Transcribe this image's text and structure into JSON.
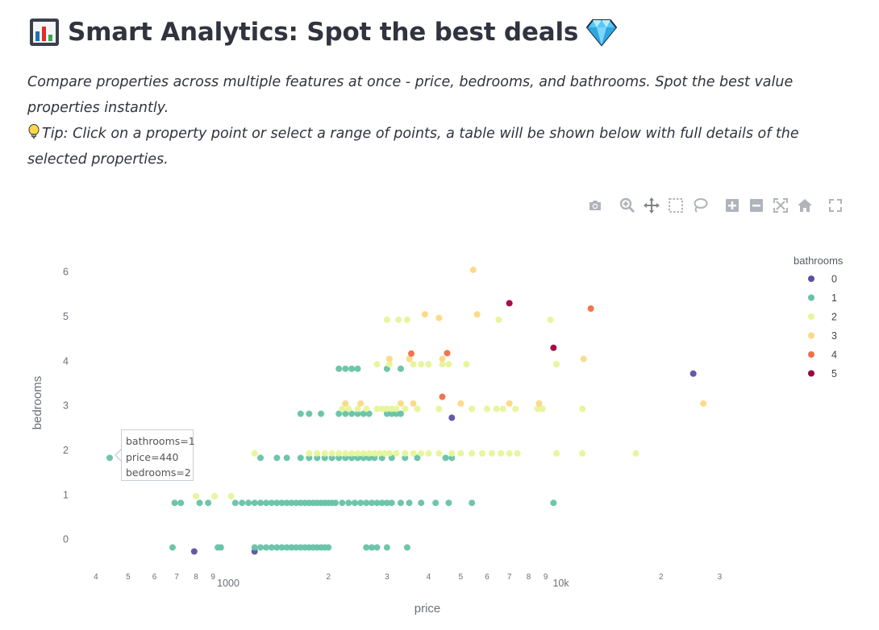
{
  "header": {
    "title": "Smart Analytics: Spot the best deals",
    "title_icon": "bar-chart-icon",
    "title_suffix_icon": "gem-icon"
  },
  "description": {
    "line1": "Compare properties across multiple features at once - price, bedrooms, and bathrooms. Spot the best value properties instantly.",
    "tip_icon": "lightbulb-icon",
    "tip": "Tip: Click on a property point or select a range of points, a table will be shown below with full details of the selected properties."
  },
  "modebar": {
    "buttons": [
      "camera-icon",
      "zoom-icon",
      "pan-icon",
      "box-select-icon",
      "lasso-select-icon",
      "zoom-in-icon",
      "zoom-out-icon",
      "autoscale-icon",
      "reset-axes-icon",
      "fullscreen-icon"
    ]
  },
  "tooltip": {
    "line1": "bathrooms=1",
    "line2": "price=440",
    "line3": "bedrooms=2"
  },
  "chart_data": {
    "type": "scatter",
    "title": "",
    "xlabel": "price",
    "ylabel": "bedrooms",
    "x_scale": "log",
    "xlim": [
      350,
      45000
    ],
    "ylim": [
      -0.55,
      6.5
    ],
    "x_ticks": [
      {
        "value": 400,
        "label": "4"
      },
      {
        "value": 500,
        "label": "5"
      },
      {
        "value": 600,
        "label": "6"
      },
      {
        "value": 700,
        "label": "7"
      },
      {
        "value": 800,
        "label": "8"
      },
      {
        "value": 900,
        "label": "9"
      },
      {
        "value": 1000,
        "label": "1000"
      },
      {
        "value": 2000,
        "label": "2"
      },
      {
        "value": 3000,
        "label": "3"
      },
      {
        "value": 4000,
        "label": "4"
      },
      {
        "value": 5000,
        "label": "5"
      },
      {
        "value": 6000,
        "label": "6"
      },
      {
        "value": 7000,
        "label": "7"
      },
      {
        "value": 8000,
        "label": "8"
      },
      {
        "value": 9000,
        "label": "9"
      },
      {
        "value": 10000,
        "label": "10k"
      },
      {
        "value": 20000,
        "label": "2"
      },
      {
        "value": 30000,
        "label": "3"
      }
    ],
    "y_ticks": [
      0,
      1,
      2,
      3,
      4,
      5,
      6
    ],
    "legend": {
      "title": "bathrooms",
      "placement": "right"
    },
    "series": [
      {
        "name": "0",
        "color": "#5e4fa2",
        "points": [
          [
            790,
            -0.27
          ],
          [
            1200,
            -0.27
          ],
          [
            4700,
            2.73
          ],
          [
            25000,
            3.72
          ]
        ]
      },
      {
        "name": "1",
        "color": "#66c2a5",
        "points": [
          [
            440,
            1.83
          ],
          [
            690,
            0.82
          ],
          [
            720,
            0.82
          ],
          [
            820,
            0.82
          ],
          [
            870,
            0.82
          ],
          [
            1050,
            0.82
          ],
          [
            1100,
            0.82
          ],
          [
            1150,
            0.82
          ],
          [
            1200,
            0.82
          ],
          [
            1250,
            0.82
          ],
          [
            1300,
            0.82
          ],
          [
            1350,
            0.82
          ],
          [
            1400,
            0.82
          ],
          [
            1450,
            0.82
          ],
          [
            1500,
            0.82
          ],
          [
            1550,
            0.82
          ],
          [
            1600,
            0.82
          ],
          [
            1650,
            0.82
          ],
          [
            1700,
            0.82
          ],
          [
            1750,
            0.82
          ],
          [
            1800,
            0.82
          ],
          [
            1850,
            0.82
          ],
          [
            1900,
            0.82
          ],
          [
            1950,
            0.82
          ],
          [
            2000,
            0.82
          ],
          [
            2050,
            0.82
          ],
          [
            2100,
            0.82
          ],
          [
            2200,
            0.82
          ],
          [
            2300,
            0.82
          ],
          [
            2400,
            0.82
          ],
          [
            2500,
            0.82
          ],
          [
            2600,
            0.82
          ],
          [
            2700,
            0.82
          ],
          [
            2800,
            0.82
          ],
          [
            2900,
            0.82
          ],
          [
            3000,
            0.82
          ],
          [
            3100,
            0.82
          ],
          [
            3300,
            0.82
          ],
          [
            3500,
            0.82
          ],
          [
            3800,
            0.82
          ],
          [
            4200,
            0.82
          ],
          [
            4600,
            0.82
          ],
          [
            5400,
            0.82
          ],
          [
            9500,
            0.82
          ],
          [
            680,
            -0.18
          ],
          [
            930,
            -0.18
          ],
          [
            950,
            -0.18
          ],
          [
            1200,
            -0.18
          ],
          [
            1250,
            -0.18
          ],
          [
            1300,
            -0.18
          ],
          [
            1350,
            -0.18
          ],
          [
            1400,
            -0.18
          ],
          [
            1450,
            -0.18
          ],
          [
            1500,
            -0.18
          ],
          [
            1550,
            -0.18
          ],
          [
            1600,
            -0.18
          ],
          [
            1650,
            -0.18
          ],
          [
            1700,
            -0.18
          ],
          [
            1750,
            -0.18
          ],
          [
            1800,
            -0.18
          ],
          [
            1850,
            -0.18
          ],
          [
            1900,
            -0.18
          ],
          [
            1950,
            -0.18
          ],
          [
            2000,
            -0.18
          ],
          [
            2600,
            -0.18
          ],
          [
            2700,
            -0.18
          ],
          [
            2800,
            -0.18
          ],
          [
            3000,
            -0.18
          ],
          [
            3450,
            -0.18
          ],
          [
            1250,
            1.83
          ],
          [
            1400,
            1.83
          ],
          [
            1500,
            1.83
          ],
          [
            1650,
            1.83
          ],
          [
            1750,
            1.83
          ],
          [
            1850,
            1.83
          ],
          [
            1950,
            1.83
          ],
          [
            2050,
            1.83
          ],
          [
            2150,
            1.83
          ],
          [
            2250,
            1.83
          ],
          [
            2350,
            1.83
          ],
          [
            2450,
            1.83
          ],
          [
            2550,
            1.83
          ],
          [
            2650,
            1.83
          ],
          [
            2750,
            1.83
          ],
          [
            2900,
            1.83
          ],
          [
            3100,
            1.83
          ],
          [
            3400,
            1.83
          ],
          [
            3700,
            1.83
          ],
          [
            4500,
            1.83
          ],
          [
            4700,
            1.83
          ],
          [
            1650,
            2.82
          ],
          [
            1750,
            2.82
          ],
          [
            1900,
            2.82
          ],
          [
            2150,
            2.82
          ],
          [
            2250,
            2.82
          ],
          [
            2350,
            2.82
          ],
          [
            2450,
            2.82
          ],
          [
            2550,
            2.82
          ],
          [
            2650,
            2.82
          ],
          [
            3000,
            2.82
          ],
          [
            3100,
            2.82
          ],
          [
            3200,
            2.82
          ],
          [
            3300,
            2.82
          ],
          [
            2150,
            3.83
          ],
          [
            2250,
            3.83
          ],
          [
            2350,
            3.83
          ],
          [
            2450,
            3.83
          ],
          [
            3000,
            3.83
          ],
          [
            3300,
            3.83
          ]
        ]
      },
      {
        "name": "2",
        "color": "#e6f598",
        "points": [
          [
            800,
            0.97
          ],
          [
            910,
            0.97
          ],
          [
            1020,
            0.97
          ],
          [
            1200,
            1.93
          ],
          [
            1750,
            1.93
          ],
          [
            1850,
            1.93
          ],
          [
            1950,
            1.93
          ],
          [
            2050,
            1.93
          ],
          [
            2150,
            1.93
          ],
          [
            2250,
            1.93
          ],
          [
            2350,
            1.93
          ],
          [
            2450,
            1.93
          ],
          [
            2550,
            1.93
          ],
          [
            2650,
            1.93
          ],
          [
            2750,
            1.93
          ],
          [
            2850,
            1.93
          ],
          [
            2950,
            1.93
          ],
          [
            3050,
            1.93
          ],
          [
            3200,
            1.93
          ],
          [
            3400,
            1.93
          ],
          [
            3600,
            1.93
          ],
          [
            3800,
            1.93
          ],
          [
            4000,
            1.93
          ],
          [
            4300,
            1.93
          ],
          [
            4700,
            1.93
          ],
          [
            5000,
            1.93
          ],
          [
            5400,
            1.93
          ],
          [
            5800,
            1.93
          ],
          [
            6200,
            1.93
          ],
          [
            6600,
            1.93
          ],
          [
            7000,
            1.93
          ],
          [
            7400,
            1.93
          ],
          [
            9700,
            1.93
          ],
          [
            11600,
            1.93
          ],
          [
            16800,
            1.93
          ],
          [
            2200,
            2.93
          ],
          [
            2300,
            2.93
          ],
          [
            2450,
            2.93
          ],
          [
            2600,
            2.93
          ],
          [
            2800,
            2.93
          ],
          [
            2900,
            2.93
          ],
          [
            3000,
            2.93
          ],
          [
            3100,
            2.93
          ],
          [
            3200,
            2.93
          ],
          [
            3400,
            2.93
          ],
          [
            3700,
            2.93
          ],
          [
            4300,
            2.93
          ],
          [
            5400,
            2.93
          ],
          [
            6000,
            2.93
          ],
          [
            6400,
            2.93
          ],
          [
            6700,
            2.93
          ],
          [
            7300,
            2.93
          ],
          [
            8500,
            2.93
          ],
          [
            8800,
            2.93
          ],
          [
            11600,
            2.93
          ],
          [
            2800,
            3.93
          ],
          [
            3050,
            3.93
          ],
          [
            3600,
            3.93
          ],
          [
            3800,
            3.93
          ],
          [
            4000,
            3.93
          ],
          [
            4400,
            3.93
          ],
          [
            4600,
            3.93
          ],
          [
            5200,
            3.93
          ],
          [
            9700,
            3.93
          ],
          [
            3000,
            4.93
          ],
          [
            3250,
            4.93
          ],
          [
            3450,
            4.93
          ],
          [
            6500,
            4.93
          ],
          [
            9300,
            4.93
          ]
        ]
      },
      {
        "name": "3",
        "color": "#fdd885",
        "points": [
          [
            2250,
            3.05
          ],
          [
            2500,
            3.05
          ],
          [
            3300,
            3.05
          ],
          [
            3600,
            3.05
          ],
          [
            5000,
            3.05
          ],
          [
            7000,
            3.05
          ],
          [
            8600,
            3.05
          ],
          [
            26800,
            3.05
          ],
          [
            3050,
            4.05
          ],
          [
            3500,
            4.05
          ],
          [
            4400,
            4.05
          ],
          [
            11700,
            4.05
          ],
          [
            3900,
            5.05
          ],
          [
            4300,
            4.97
          ],
          [
            5600,
            5.05
          ],
          [
            5450,
            6.05
          ]
        ]
      },
      {
        "name": "4",
        "color": "#f46d43",
        "points": [
          [
            3550,
            4.17
          ],
          [
            4400,
            3.2
          ],
          [
            4550,
            4.18
          ],
          [
            12300,
            5.18
          ]
        ]
      },
      {
        "name": "5",
        "color": "#9e0142",
        "points": [
          [
            7000,
            5.3
          ],
          [
            9500,
            4.3
          ]
        ]
      }
    ]
  }
}
